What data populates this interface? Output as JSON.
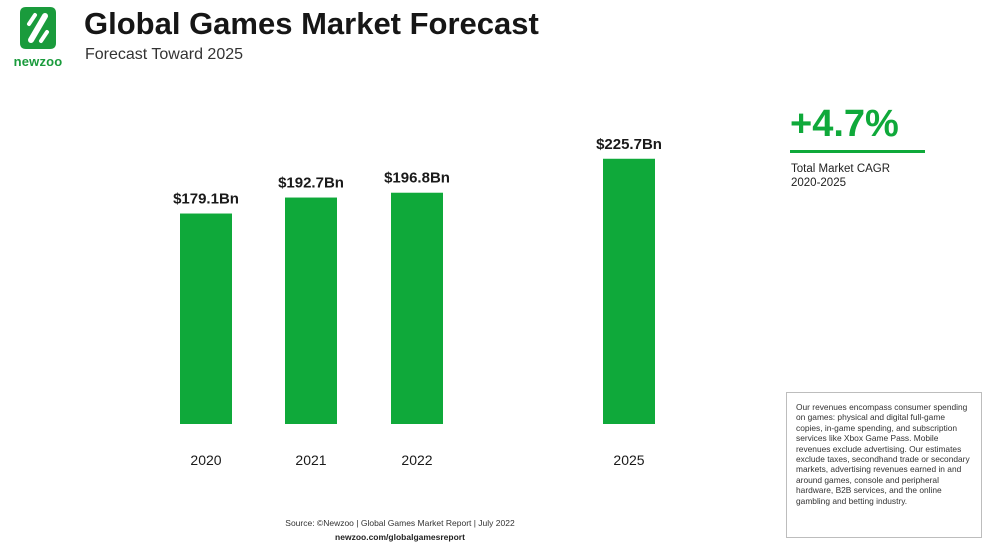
{
  "header": {
    "logo_text": "newzoo",
    "title": "Global Games Market Forecast",
    "subtitle": "Forecast Toward 2025"
  },
  "colors": {
    "bar": "#0fa93a",
    "brand_green": "#1a9b3c",
    "text_dark": "#1a1a1a"
  },
  "chart_data": {
    "type": "bar",
    "categories": [
      "2020",
      "2021",
      "2022",
      "2025"
    ],
    "values": [
      179.1,
      192.7,
      196.8,
      225.7
    ],
    "data_labels": [
      "$179.1Bn",
      "$192.7Bn",
      "$196.8Bn",
      "$225.7Bn"
    ],
    "title": "Global Games Market Forecast",
    "subtitle": "Forecast Toward 2025",
    "xlabel": "",
    "ylabel": "",
    "ylim": [
      0,
      240
    ],
    "grid": false,
    "legend": "none"
  },
  "cagr": {
    "value": "+4.7%",
    "label_line1": "Total Market CAGR",
    "label_line2": "2020-2025"
  },
  "note": "Our revenues encompass consumer spending on games: physical and digital full-game copies, in-game spending, and subscription services like Xbox Game Pass. Mobile revenues exclude advertising. Our estimates exclude taxes, secondhand trade or secondary markets, advertising revenues earned in and around games, console and peripheral hardware, B2B services, and the online gambling and betting industry.",
  "source": {
    "text": "Source: ©Newzoo | Global Games Market Report | July 2022",
    "url": "newzoo.com/globalgamesreport"
  }
}
